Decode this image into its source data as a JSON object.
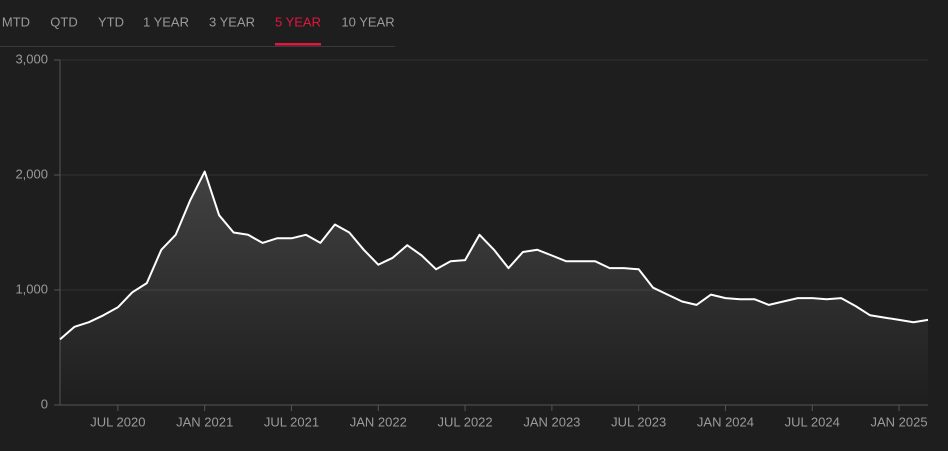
{
  "tabs": {
    "items": [
      "MTD",
      "QTD",
      "YTD",
      "1 YEAR",
      "3 YEAR",
      "5 YEAR",
      "10 YEAR"
    ],
    "active": 5
  },
  "chart_data": {
    "type": "line",
    "color": "#ffffff",
    "grid": true,
    "x": [
      "2020-03",
      "2020-04",
      "2020-05",
      "2020-06",
      "2020-07",
      "2020-08",
      "2020-09",
      "2020-10",
      "2020-11",
      "2020-12",
      "2021-01",
      "2021-02",
      "2021-03",
      "2021-04",
      "2021-05",
      "2021-06",
      "2021-07",
      "2021-08",
      "2021-09",
      "2021-10",
      "2021-11",
      "2021-12",
      "2022-01",
      "2022-02",
      "2022-03",
      "2022-04",
      "2022-05",
      "2022-06",
      "2022-07",
      "2022-08",
      "2022-09",
      "2022-10",
      "2022-11",
      "2022-12",
      "2023-01",
      "2023-02",
      "2023-03",
      "2023-04",
      "2023-05",
      "2023-06",
      "2023-07",
      "2023-08",
      "2023-09",
      "2023-10",
      "2023-11",
      "2023-12",
      "2024-01",
      "2024-02",
      "2024-03",
      "2024-04",
      "2024-05",
      "2024-06",
      "2024-07",
      "2024-08",
      "2024-09",
      "2024-10",
      "2024-11",
      "2024-12",
      "2025-01",
      "2025-02",
      "2025-03"
    ],
    "values": [
      570,
      680,
      720,
      780,
      850,
      980,
      1060,
      1350,
      1480,
      1780,
      2030,
      1650,
      1500,
      1480,
      1410,
      1450,
      1450,
      1480,
      1410,
      1570,
      1500,
      1350,
      1220,
      1280,
      1390,
      1300,
      1180,
      1250,
      1260,
      1480,
      1350,
      1190,
      1330,
      1350,
      1300,
      1250,
      1250,
      1250,
      1190,
      1190,
      1180,
      1020,
      960,
      900,
      870,
      960,
      930,
      920,
      920,
      870,
      900,
      930,
      930,
      920,
      930,
      860,
      780,
      760,
      740,
      720,
      740
    ],
    "xlim": [
      "2020-03",
      "2025-03"
    ],
    "xticks": [
      {
        "value": "2020-07",
        "label": "JUL 2020"
      },
      {
        "value": "2021-01",
        "label": "JAN 2021"
      },
      {
        "value": "2021-07",
        "label": "JUL 2021"
      },
      {
        "value": "2022-01",
        "label": "JAN 2022"
      },
      {
        "value": "2022-07",
        "label": "JUL 2022"
      },
      {
        "value": "2023-01",
        "label": "JAN 2023"
      },
      {
        "value": "2023-07",
        "label": "JUL 2023"
      },
      {
        "value": "2024-01",
        "label": "JAN 2024"
      },
      {
        "value": "2024-07",
        "label": "JUL 2024"
      },
      {
        "value": "2025-01",
        "label": "JAN 2025"
      }
    ],
    "ylim": [
      0,
      3000
    ],
    "yticks": [
      0,
      {
        "value": 1000,
        "label": "1,000"
      },
      {
        "value": 2000,
        "label": "2,000"
      },
      {
        "value": 3000,
        "label": "3,000"
      }
    ]
  }
}
